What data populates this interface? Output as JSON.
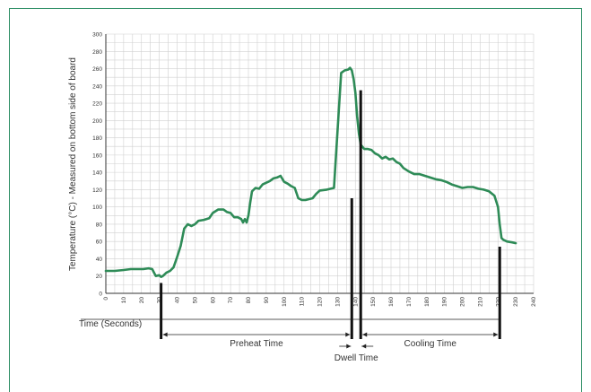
{
  "chart_data": {
    "type": "line",
    "title": "",
    "xlabel": "Time (Seconds)",
    "ylabel": "Temperature (°C) - Measured on bottom side of board",
    "xlim": [
      0,
      240
    ],
    "ylim": [
      0,
      300
    ],
    "x_ticks": [
      0,
      10,
      20,
      30,
      40,
      50,
      60,
      70,
      80,
      90,
      100,
      110,
      120,
      130,
      140,
      150,
      160,
      170,
      180,
      190,
      200,
      210,
      220,
      230,
      240
    ],
    "y_ticks": [
      0,
      20,
      40,
      60,
      80,
      100,
      120,
      140,
      160,
      180,
      200,
      220,
      240,
      260,
      280,
      300
    ],
    "grid": true,
    "line_color": "#2e8b57",
    "series": [
      {
        "x": [
          0,
          5,
          10,
          14,
          18,
          21,
          24,
          26,
          28,
          30,
          31,
          32,
          34,
          36,
          38,
          40,
          42,
          44,
          46,
          48,
          50,
          52,
          55,
          58,
          60,
          63,
          66,
          68,
          70,
          72,
          74,
          76,
          77,
          78,
          79,
          80,
          81,
          82,
          84,
          86,
          88,
          90,
          92,
          94,
          96,
          98,
          100,
          102,
          104,
          106,
          108,
          110,
          112,
          114,
          116,
          118,
          120,
          124,
          128,
          132,
          134,
          136,
          137,
          138,
          139,
          140,
          141,
          142,
          143,
          145,
          147,
          149,
          151,
          153,
          155,
          157,
          159,
          161,
          163,
          165,
          167,
          170,
          173,
          176,
          179,
          182,
          185,
          188,
          191,
          194,
          197,
          200,
          203,
          206,
          209,
          212,
          215,
          218,
          220,
          221,
          222,
          223,
          225,
          228,
          230
        ],
        "y": [
          26,
          26,
          27,
          28,
          28,
          28,
          29,
          28,
          20,
          21,
          19,
          20,
          24,
          26,
          30,
          42,
          55,
          75,
          80,
          78,
          80,
          84,
          85,
          87,
          93,
          97,
          97,
          94,
          93,
          88,
          88,
          86,
          82,
          86,
          82,
          90,
          105,
          118,
          122,
          121,
          126,
          128,
          130,
          133,
          134,
          136,
          129,
          127,
          124,
          122,
          110,
          108,
          108,
          109,
          110,
          115,
          119,
          120,
          122,
          255,
          258,
          259,
          261,
          258,
          248,
          232,
          205,
          185,
          172,
          167,
          167,
          166,
          162,
          160,
          156,
          158,
          155,
          156,
          152,
          150,
          145,
          141,
          138,
          138,
          136,
          134,
          132,
          131,
          129,
          126,
          124,
          122,
          123,
          123,
          121,
          120,
          118,
          113,
          100,
          80,
          64,
          62,
          60,
          59,
          58
        ]
      }
    ],
    "markers": [
      {
        "x": 31,
        "top": 12
      },
      {
        "x": 138,
        "top": 110
      },
      {
        "x": 143,
        "top": 235
      },
      {
        "x": 221,
        "top": 54
      }
    ],
    "phases": [
      {
        "name": "Preheat Time",
        "from": 31,
        "to": 138
      },
      {
        "name": "Dwell Time",
        "from": 138,
        "to": 143
      },
      {
        "name": "Cooling Time",
        "from": 143,
        "to": 221
      }
    ]
  }
}
